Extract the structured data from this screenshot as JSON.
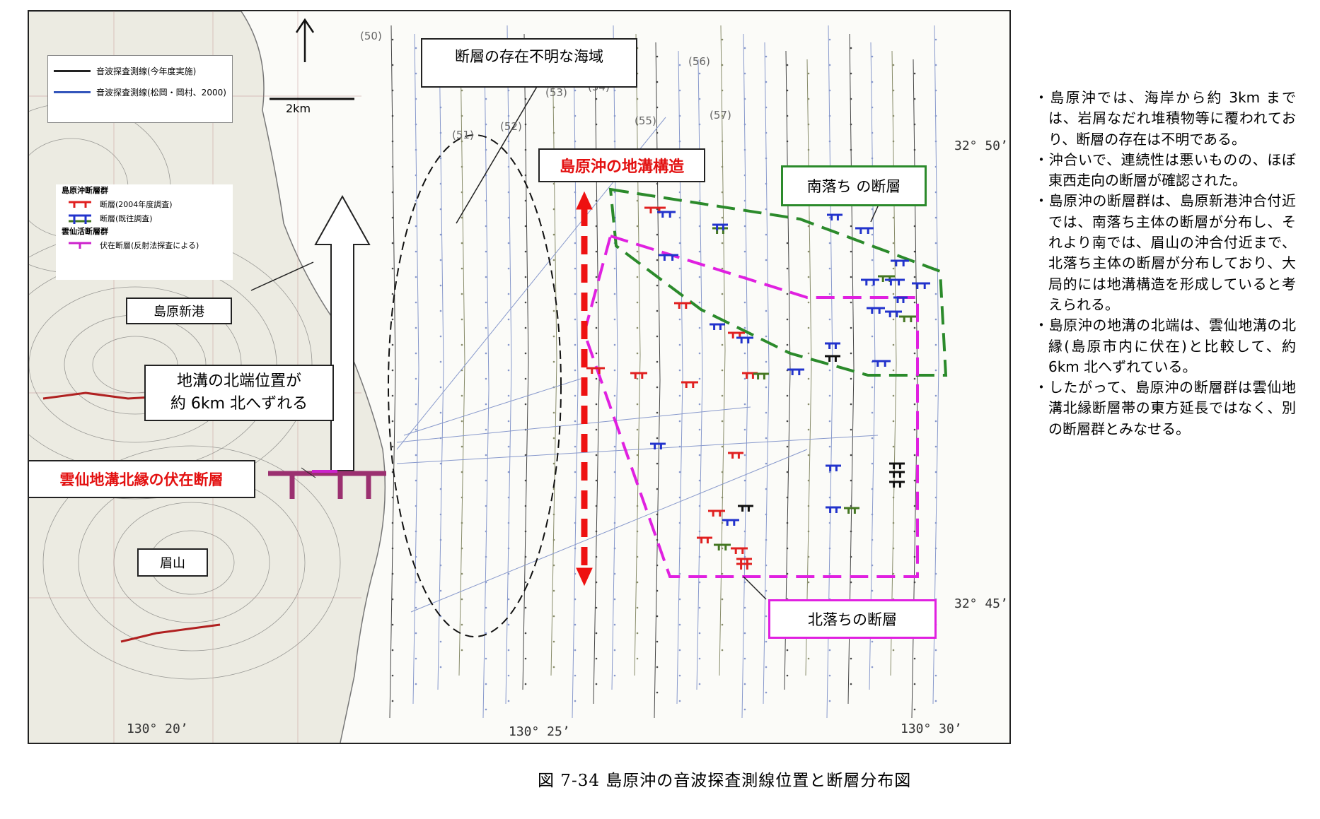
{
  "map": {
    "legend_lines": [
      {
        "label": "音波探査測線(今年度実施)",
        "color": "#222222"
      },
      {
        "label": "音波探査測線(松岡・岡村、2000)",
        "color": "#3355bb",
        "color2": "#558833"
      }
    ],
    "scale_label": "2km",
    "legend_faults": {
      "group1_title": "島原沖断層群",
      "items1": [
        {
          "label": "断層(2004年度調査)",
          "color": "#e02020"
        },
        {
          "label": "断層(既往調査)",
          "color": "#2233cc",
          "color2": "#447722"
        }
      ],
      "group2_title": "雲仙活断層群",
      "items2": [
        {
          "label": "伏在断層(反射法探査による)",
          "color": "#cc22cc"
        }
      ]
    },
    "labels": {
      "unknown_area": "断層の存在不明な海域",
      "graben": "島原沖の地溝構造",
      "south_fault": "南落ち の断層",
      "north_fault": "北落ちの断層",
      "shimabara_port": "島原新港",
      "graben_shift_line1": "地溝の北端位置が",
      "graben_shift_line2": "約 6km 北へずれる",
      "unzen_fault": "雲仙地溝北縁の伏在断層",
      "mayuyama": "眉山"
    },
    "line_numbers": [
      "(50)",
      "(51)",
      "(52)",
      "(53)",
      "(54)",
      "(55)",
      "(56)",
      "(57)"
    ],
    "coords": {
      "lat_50": "32° 50’",
      "lat_45": "32° 45’",
      "lon_20": "130° 20’",
      "lon_25": "130° 25’",
      "lon_30": "130° 30’"
    },
    "colors": {
      "red_label": "#e31010",
      "green_box": "#2b8a2b",
      "magenta_box": "#e020e0",
      "red_arrow": "#ee1111",
      "fault_red": "#e02020",
      "fault_blue": "#2233cc",
      "fault_green": "#447722",
      "fault_black": "#111111",
      "fault_purple": "#9b3070"
    }
  },
  "notes": [
    "・島原沖では、海岸から約 3km までは、岩屑なだれ堆積物等に覆われており、断層の存在は不明である。",
    "・沖合いで、連続性は悪いものの、ほぼ東西走向の断層が確認された。",
    "・島原沖の断層群は、島原新港沖合付近では、南落ち主体の断層が分布し、それより南では、眉山の沖合付近まで、北落ち主体の断層が分布しており、大局的には地溝構造を形成していると考えられる。",
    "・島原沖の地溝の北端は、雲仙地溝の北縁(島原市内に伏在)と比較して、約 6km 北へずれている。",
    "・したがって、島原沖の断層群は雲仙地溝北縁断層帯の東方延長ではなく、別の断層群とみなせる。"
  ],
  "caption": "図 7-34 島原沖の音波探査測線位置と断層分布図"
}
